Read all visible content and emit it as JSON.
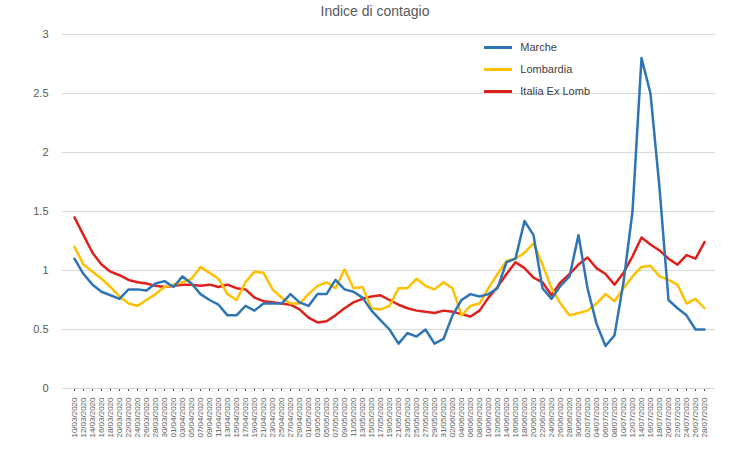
{
  "chart_data": {
    "type": "line",
    "title": "Indice di contagio",
    "x": [
      "10/03/2020",
      "12/03/2020",
      "14/03/2020",
      "16/03/2020",
      "18/03/2020",
      "20/03/2020",
      "22/03/2020",
      "24/03/2020",
      "26/03/2020",
      "28/03/2020",
      "30/03/2020",
      "01/04/2020",
      "03/04/2020",
      "05/04/2020",
      "07/04/2020",
      "09/04/2020",
      "11/04/2020",
      "13/04/2020",
      "15/04/2020",
      "17/04/2020",
      "19/04/2020",
      "21/04/2020",
      "23/04/2020",
      "25/04/2020",
      "27/04/2020",
      "29/04/2020",
      "01/05/2020",
      "03/05/2020",
      "05/05/2020",
      "07/05/2020",
      "09/05/2020",
      "11/05/2020",
      "13/05/2020",
      "15/05/2020",
      "17/05/2020",
      "19/05/2020",
      "21/05/2020",
      "23/05/2020",
      "25/05/2020",
      "27/05/2020",
      "29/05/2020",
      "31/05/2020",
      "02/06/2020",
      "04/06/2020",
      "06/06/2020",
      "08/06/2020",
      "10/06/2020",
      "12/06/2020",
      "14/06/2020",
      "16/06/2020",
      "18/06/2020",
      "20/06/2020",
      "22/06/2020",
      "24/06/2020",
      "26/06/2020",
      "28/06/2020",
      "30/06/2020",
      "02/07/2020",
      "04/07/2020",
      "06/07/2020",
      "08/07/2020",
      "10/07/2020",
      "12/07/2020",
      "14/07/2020",
      "16/07/2020",
      "18/07/2020",
      "20/07/2020",
      "22/07/2020",
      "24/07/2020",
      "26/07/2020",
      "28/07/2020"
    ],
    "series": [
      {
        "name": "Marche",
        "color": "#2e75b6",
        "values": [
          1.1,
          0.97,
          0.88,
          0.82,
          0.79,
          0.76,
          0.84,
          0.84,
          0.83,
          0.89,
          0.91,
          0.86,
          0.95,
          0.89,
          0.8,
          0.75,
          0.71,
          0.62,
          0.62,
          0.7,
          0.66,
          0.72,
          0.72,
          0.72,
          0.8,
          0.73,
          0.7,
          0.8,
          0.8,
          0.92,
          0.84,
          0.82,
          0.77,
          0.66,
          0.58,
          0.5,
          0.38,
          0.47,
          0.44,
          0.5,
          0.38,
          0.42,
          0.62,
          0.75,
          0.8,
          0.78,
          0.8,
          0.85,
          1.07,
          1.1,
          1.42,
          1.3,
          0.85,
          0.76,
          0.87,
          0.95,
          1.3,
          0.85,
          0.55,
          0.36,
          0.45,
          0.9,
          1.5,
          2.8,
          2.5,
          1.7,
          0.75,
          0.68,
          0.62,
          0.5,
          0.5
        ]
      },
      {
        "name": "Lombardia",
        "color": "#ffc000",
        "values": [
          1.2,
          1.05,
          0.99,
          0.93,
          0.86,
          0.78,
          0.72,
          0.7,
          0.75,
          0.8,
          0.86,
          0.88,
          0.9,
          0.93,
          1.03,
          0.98,
          0.93,
          0.8,
          0.75,
          0.9,
          0.99,
          0.98,
          0.84,
          0.77,
          0.72,
          0.72,
          0.8,
          0.87,
          0.9,
          0.85,
          1.01,
          0.85,
          0.86,
          0.68,
          0.67,
          0.7,
          0.85,
          0.85,
          0.93,
          0.87,
          0.84,
          0.9,
          0.85,
          0.62,
          0.7,
          0.72,
          0.85,
          0.97,
          1.08,
          1.1,
          1.15,
          1.23,
          1.05,
          0.85,
          0.72,
          0.62,
          0.64,
          0.66,
          0.72,
          0.8,
          0.74,
          0.85,
          0.95,
          1.03,
          1.04,
          0.95,
          0.92,
          0.88,
          0.72,
          0.76,
          0.68
        ]
      },
      {
        "name": "Italia Ex Lomb",
        "color": "#e0201b",
        "values": [
          1.45,
          1.3,
          1.15,
          1.05,
          0.99,
          0.96,
          0.92,
          0.9,
          0.89,
          0.87,
          0.86,
          0.87,
          0.88,
          0.88,
          0.87,
          0.88,
          0.86,
          0.88,
          0.85,
          0.84,
          0.77,
          0.74,
          0.73,
          0.72,
          0.71,
          0.67,
          0.6,
          0.56,
          0.57,
          0.62,
          0.68,
          0.73,
          0.76,
          0.78,
          0.79,
          0.75,
          0.71,
          0.68,
          0.66,
          0.65,
          0.64,
          0.66,
          0.65,
          0.63,
          0.61,
          0.66,
          0.77,
          0.86,
          0.97,
          1.07,
          1.02,
          0.94,
          0.9,
          0.79,
          0.9,
          0.97,
          1.05,
          1.11,
          1.02,
          0.97,
          0.88,
          0.98,
          1.12,
          1.28,
          1.22,
          1.17,
          1.1,
          1.05,
          1.13,
          1.1,
          1.24
        ]
      }
    ],
    "ylim": [
      0,
      3
    ],
    "yticks": [
      0,
      0.5,
      1,
      1.5,
      2,
      2.5,
      3
    ],
    "grid": true,
    "legend": "top-right"
  }
}
